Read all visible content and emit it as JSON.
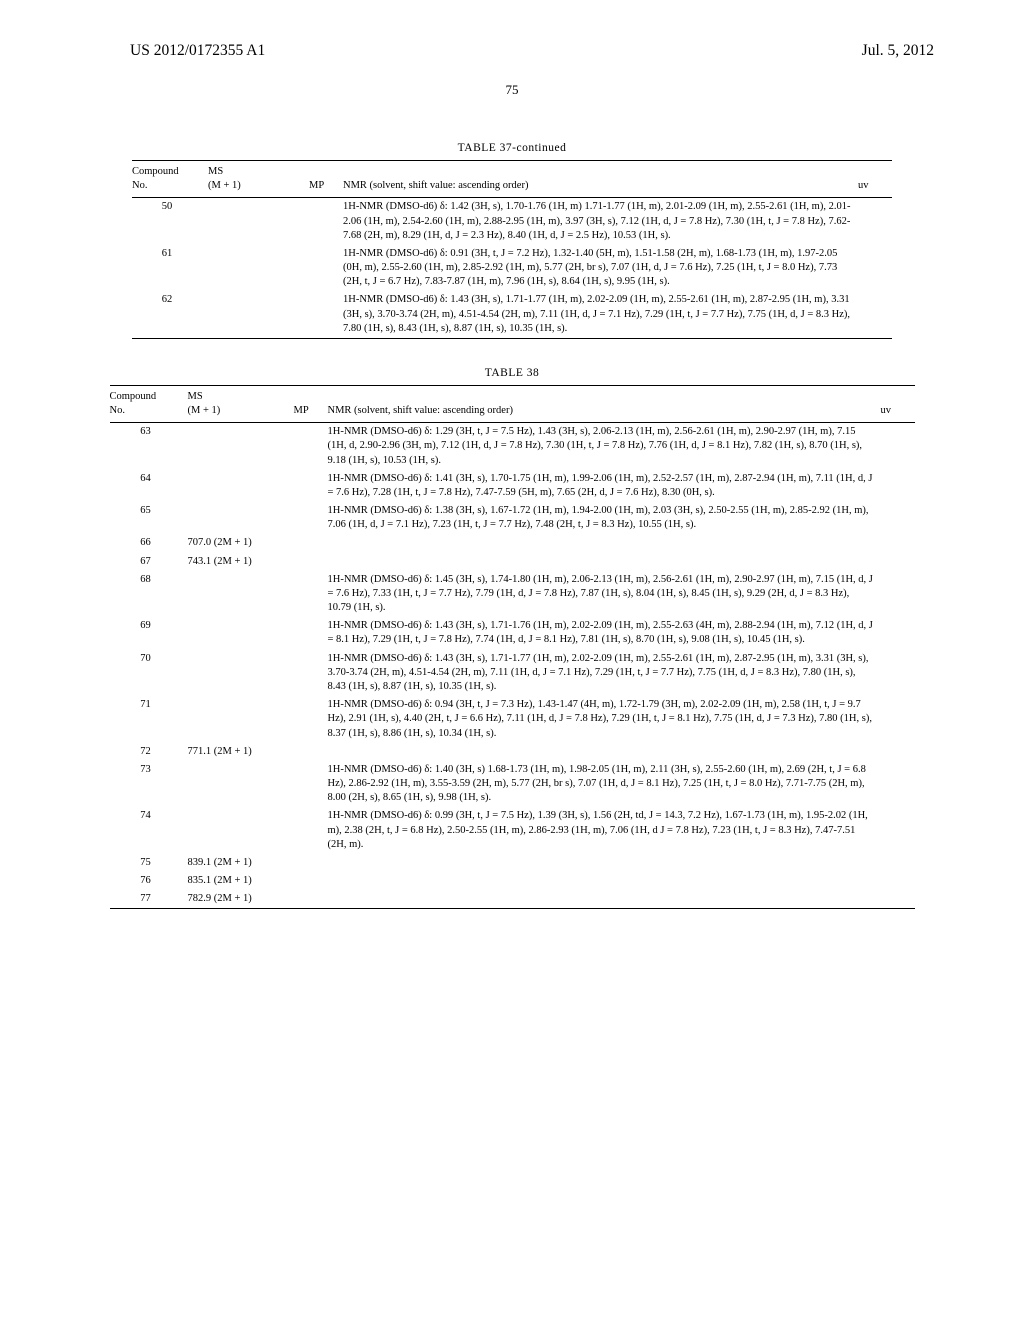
{
  "header": {
    "pub_number": "US 2012/0172355 A1",
    "pub_date": "Jul. 5, 2012",
    "page_number": "75"
  },
  "table37": {
    "title": "TABLE 37-continued",
    "columns": {
      "compound": "Compound\nNo.",
      "ms": "MS\n(M + 1)",
      "mp": "MP",
      "nmr": "NMR (solvent, shift value: ascending order)",
      "uv": "uv"
    },
    "rows": [
      {
        "no": "50",
        "ms": "",
        "mp": "",
        "nmr": "1H-NMR (DMSO-d6) δ: 1.42 (3H, s), 1.70-1.76 (1H, m) 1.71-1.77 (1H, m), 2.01-2.09 (1H, m), 2.55-2.61 (1H, m), 2.01-2.06 (1H, m), 2.54-2.60 (1H, m), 2.88-2.95 (1H, m), 3.97 (3H, s), 7.12 (1H, d, J = 7.8 Hz), 7.30 (1H, t, J = 7.8 Hz), 7.62-7.68 (2H, m), 8.29 (1H, d, J = 2.3 Hz), 8.40 (1H, d, J = 2.5 Hz), 10.53 (1H, s).",
        "uv": ""
      },
      {
        "no": "61",
        "ms": "",
        "mp": "",
        "nmr": "1H-NMR (DMSO-d6) δ: 0.91 (3H, t, J = 7.2 Hz), 1.32-1.40 (5H, m), 1.51-1.58 (2H, m), 1.68-1.73 (1H, m), 1.97-2.05 (0H, m), 2.55-2.60 (1H, m), 2.85-2.92 (1H, m), 5.77 (2H, br s), 7.07 (1H, d, J = 7.6 Hz), 7.25 (1H, t, J = 8.0 Hz), 7.73 (2H, t, J = 6.7 Hz), 7.83-7.87 (1H, m), 7.96 (1H, s), 8.64 (1H, s), 9.95 (1H, s).",
        "uv": ""
      },
      {
        "no": "62",
        "ms": "",
        "mp": "",
        "nmr": "1H-NMR (DMSO-d6) δ: 1.43 (3H, s), 1.71-1.77 (1H, m), 2.02-2.09 (1H, m), 2.55-2.61 (1H, m), 2.87-2.95 (1H, m), 3.31 (3H, s), 3.70-3.74 (2H, m), 4.51-4.54 (2H, m), 7.11 (1H, d, J = 7.1 Hz), 7.29 (1H, t, J = 7.7 Hz), 7.75 (1H, d, J = 8.3 Hz), 7.80 (1H, s), 8.43 (1H, s), 8.87 (1H, s), 10.35 (1H, s).",
        "uv": ""
      }
    ]
  },
  "table38": {
    "title": "TABLE 38",
    "columns": {
      "compound": "Compound\nNo.",
      "ms": "MS\n(M + 1)",
      "mp": "MP",
      "nmr": "NMR (solvent, shift value: ascending order)",
      "uv": "uv"
    },
    "rows": [
      {
        "no": "63",
        "ms": "",
        "mp": "",
        "nmr": "1H-NMR (DMSO-d6) δ: 1.29 (3H, t, J = 7.5 Hz), 1.43 (3H, s), 2.06-2.13 (1H, m), 2.56-2.61 (1H, m), 2.90-2.97 (1H, m), 7.15 (1H, d, 2.90-2.96 (3H, m), 7.12 (1H, d, J = 7.8 Hz), 7.30 (1H, t, J = 7.8 Hz), 7.76 (1H, d, J = 8.1 Hz), 7.82 (1H, s), 8.70 (1H, s), 9.18 (1H, s), 10.53 (1H, s).",
        "uv": ""
      },
      {
        "no": "64",
        "ms": "",
        "mp": "",
        "nmr": "1H-NMR (DMSO-d6) δ: 1.41 (3H, s), 1.70-1.75 (1H, m), 1.99-2.06 (1H, m), 2.52-2.57 (1H, m), 2.87-2.94 (1H, m), 7.11 (1H, d, J = 7.6 Hz), 7.28 (1H, t, J = 7.8 Hz), 7.47-7.59 (5H, m), 7.65 (2H, d, J = 7.6 Hz), 8.30 (0H, s).",
        "uv": ""
      },
      {
        "no": "65",
        "ms": "",
        "mp": "",
        "nmr": "1H-NMR (DMSO-d6) δ: 1.38 (3H, s), 1.67-1.72 (1H, m), 1.94-2.00 (1H, m), 2.03 (3H, s), 2.50-2.55 (1H, m), 2.85-2.92 (1H, m), 7.06 (1H, d, J = 7.1 Hz), 7.23 (1H, t, J = 7.7 Hz), 7.48 (2H, t, J = 8.3 Hz), 10.55 (1H, s).",
        "uv": ""
      },
      {
        "no": "66",
        "ms": "707.0 (2M + 1)",
        "mp": "",
        "nmr": "",
        "uv": ""
      },
      {
        "no": "67",
        "ms": "743.1 (2M + 1)",
        "mp": "",
        "nmr": "",
        "uv": ""
      },
      {
        "no": "68",
        "ms": "",
        "mp": "",
        "nmr": "1H-NMR (DMSO-d6) δ: 1.45 (3H, s), 1.74-1.80 (1H, m), 2.06-2.13 (1H, m), 2.56-2.61 (1H, m), 2.90-2.97 (1H, m), 7.15 (1H, d, J = 7.6 Hz), 7.33 (1H, t, J = 7.7 Hz), 7.79 (1H, d, J = 7.8 Hz), 7.87 (1H, s), 8.04 (1H, s), 8.45 (1H, s), 9.29 (2H, d, J = 8.3 Hz), 10.79 (1H, s).",
        "uv": ""
      },
      {
        "no": "69",
        "ms": "",
        "mp": "",
        "nmr": "1H-NMR (DMSO-d6) δ: 1.43 (3H, s), 1.71-1.76 (1H, m), 2.02-2.09 (1H, m), 2.55-2.63 (4H, m), 2.88-2.94 (1H, m), 7.12 (1H, d, J = 8.1 Hz), 7.29 (1H, t, J = 7.8 Hz), 7.74 (1H, d, J = 8.1 Hz), 7.81 (1H, s), 8.70 (1H, s), 9.08 (1H, s), 10.45 (1H, s).",
        "uv": ""
      },
      {
        "no": "70",
        "ms": "",
        "mp": "",
        "nmr": "1H-NMR (DMSO-d6) δ: 1.43 (3H, s), 1.71-1.77 (1H, m), 2.02-2.09 (1H, m), 2.55-2.61 (1H, m), 2.87-2.95 (1H, m), 3.31 (3H, s), 3.70-3.74 (2H, m), 4.51-4.54 (2H, m), 7.11 (1H, d, J = 7.1 Hz), 7.29 (1H, t, J = 7.7 Hz), 7.75 (1H, d, J = 8.3 Hz), 7.80 (1H, s), 8.43 (1H, s), 8.87 (1H, s), 10.35 (1H, s).",
        "uv": ""
      },
      {
        "no": "71",
        "ms": "",
        "mp": "",
        "nmr": "1H-NMR (DMSO-d6) δ: 0.94 (3H, t, J = 7.3 Hz), 1.43-1.47 (4H, m), 1.72-1.79 (3H, m), 2.02-2.09 (1H, m), 2.58 (1H, t, J = 9.7 Hz), 2.91 (1H, s), 4.40 (2H, t, J = 6.6 Hz), 7.11 (1H, d, J = 7.8 Hz), 7.29 (1H, t, J = 8.1 Hz), 7.75 (1H, d, J = 7.3 Hz), 7.80 (1H, s), 8.37 (1H, s), 8.86 (1H, s), 10.34 (1H, s).",
        "uv": ""
      },
      {
        "no": "72",
        "ms": "771.1 (2M + 1)",
        "mp": "",
        "nmr": "",
        "uv": ""
      },
      {
        "no": "73",
        "ms": "",
        "mp": "",
        "nmr": "1H-NMR (DMSO-d6) δ: 1.40 (3H, s) 1.68-1.73 (1H, m), 1.98-2.05 (1H, m), 2.11 (3H, s), 2.55-2.60 (1H, m), 2.69 (2H, t, J = 6.8 Hz), 2.86-2.92 (1H, m), 3.55-3.59 (2H, m), 5.77 (2H, br s), 7.07 (1H, d, J = 8.1 Hz), 7.25 (1H, t, J = 8.0 Hz), 7.71-7.75 (2H, m), 8.00 (2H, s), 8.65 (1H, s), 9.98 (1H, s).",
        "uv": ""
      },
      {
        "no": "74",
        "ms": "",
        "mp": "",
        "nmr": "1H-NMR (DMSO-d6) δ: 0.99 (3H, t, J = 7.5 Hz), 1.39 (3H, s), 1.56 (2H, td, J = 14.3, 7.2 Hz), 1.67-1.73 (1H, m), 1.95-2.02 (1H, m), 2.38 (2H, t, J = 6.8 Hz), 2.50-2.55 (1H, m), 2.86-2.93 (1H, m), 7.06 (1H, d J = 7.8 Hz), 7.23 (1H, t, J = 8.3 Hz), 7.47-7.51 (2H, m).",
        "uv": ""
      },
      {
        "no": "75",
        "ms": "839.1 (2M + 1)",
        "mp": "",
        "nmr": "",
        "uv": ""
      },
      {
        "no": "76",
        "ms": "835.1 (2M + 1)",
        "mp": "",
        "nmr": "",
        "uv": ""
      },
      {
        "no": "77",
        "ms": "782.9 (2M + 1)",
        "mp": "",
        "nmr": "",
        "uv": ""
      }
    ]
  }
}
